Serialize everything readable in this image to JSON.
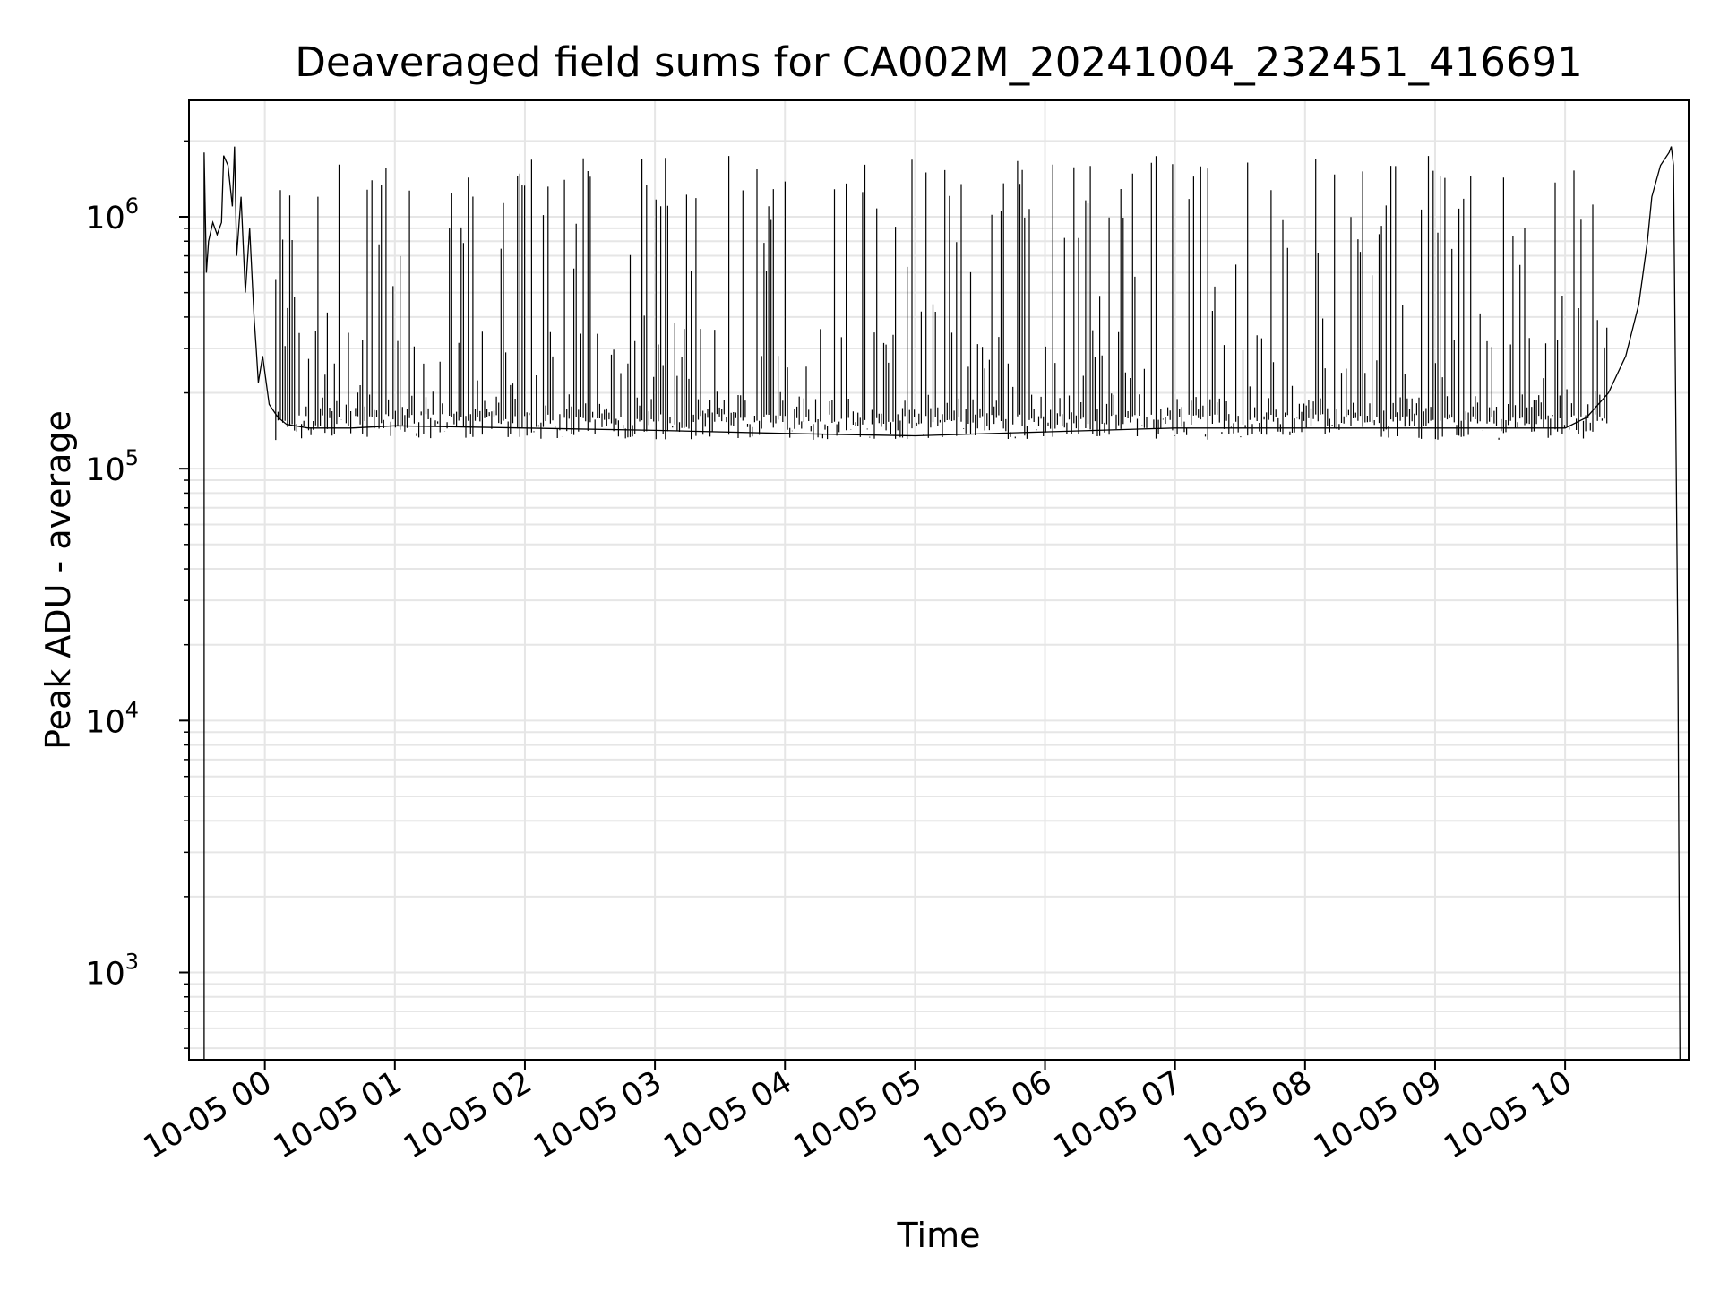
{
  "chart_data": {
    "type": "line",
    "title": "Deaveraged field sums for CA002M_20241004_232451_416691",
    "xlabel": "Time",
    "ylabel": "Peak ADU - average",
    "y_scale": "log",
    "ylim": [
      450,
      2900000
    ],
    "xlim": [
      "2024-10-04 23:25",
      "2024-10-05 10:57"
    ],
    "grid": true,
    "grid_minor_y": true,
    "line_color": "#000000",
    "grid_color": "#e6e6e6",
    "x_ticks": [
      {
        "value": "2024-10-05 00:00",
        "label": "10-05 00"
      },
      {
        "value": "2024-10-05 01:00",
        "label": "10-05 01"
      },
      {
        "value": "2024-10-05 02:00",
        "label": "10-05 02"
      },
      {
        "value": "2024-10-05 03:00",
        "label": "10-05 03"
      },
      {
        "value": "2024-10-05 04:00",
        "label": "10-05 04"
      },
      {
        "value": "2024-10-05 05:00",
        "label": "10-05 05"
      },
      {
        "value": "2024-10-05 06:00",
        "label": "10-05 06"
      },
      {
        "value": "2024-10-05 07:00",
        "label": "10-05 07"
      },
      {
        "value": "2024-10-05 08:00",
        "label": "10-05 08"
      },
      {
        "value": "2024-10-05 09:00",
        "label": "10-05 09"
      },
      {
        "value": "2024-10-05 10:00",
        "label": "10-05 10"
      }
    ],
    "y_ticks": [
      {
        "value": 1000,
        "base": "10",
        "exp": "3"
      },
      {
        "value": 10000,
        "base": "10",
        "exp": "4"
      },
      {
        "value": 100000,
        "base": "10",
        "exp": "5"
      },
      {
        "value": 1000000,
        "base": "10",
        "exp": "6"
      }
    ],
    "series": [
      {
        "points": [
          [
            "2024-10-04 23:32",
            450
          ],
          [
            "2024-10-04 23:32",
            900000
          ],
          [
            "2024-10-04 23:32",
            1800000
          ],
          [
            "2024-10-04 23:33",
            600000
          ],
          [
            "2024-10-04 23:34",
            800000
          ],
          [
            "2024-10-04 23:36",
            950000
          ],
          [
            "2024-10-04 23:38",
            850000
          ],
          [
            "2024-10-04 23:40",
            950000
          ],
          [
            "2024-10-04 23:41",
            1750000
          ],
          [
            "2024-10-04 23:43",
            1600000
          ],
          [
            "2024-10-04 23:45",
            1100000
          ],
          [
            "2024-10-04 23:46",
            1900000
          ],
          [
            "2024-10-04 23:47",
            700000
          ],
          [
            "2024-10-04 23:49",
            1200000
          ],
          [
            "2024-10-04 23:51",
            500000
          ],
          [
            "2024-10-04 23:53",
            900000
          ],
          [
            "2024-10-04 23:55",
            400000
          ],
          [
            "2024-10-04 23:56",
            300000
          ],
          [
            "2024-10-04 23:57",
            220000
          ],
          [
            "2024-10-04 23:59",
            280000
          ],
          [
            "2024-10-05 00:02",
            180000
          ],
          [
            "2024-10-05 00:06",
            160000
          ],
          [
            "2024-10-05 00:10",
            150000
          ],
          [
            "2024-10-05 00:20",
            145000
          ],
          [
            "2024-10-05 00:40",
            145000
          ],
          [
            "2024-10-05 01:00",
            148000
          ],
          [
            "2024-10-05 02:00",
            145000
          ],
          [
            "2024-10-05 03:00",
            142000
          ],
          [
            "2024-10-05 04:00",
            138000
          ],
          [
            "2024-10-05 05:00",
            135000
          ],
          [
            "2024-10-05 06:00",
            140000
          ],
          [
            "2024-10-05 07:00",
            145000
          ],
          [
            "2024-10-05 08:00",
            145000
          ],
          [
            "2024-10-05 09:00",
            145000
          ],
          [
            "2024-10-05 10:00",
            145000
          ],
          [
            "2024-10-05 10:10",
            160000
          ],
          [
            "2024-10-05 10:20",
            200000
          ],
          [
            "2024-10-05 10:28",
            280000
          ],
          [
            "2024-10-05 10:34",
            450000
          ],
          [
            "2024-10-05 10:38",
            800000
          ],
          [
            "2024-10-05 10:40",
            1200000
          ],
          [
            "2024-10-05 10:44",
            1600000
          ],
          [
            "2024-10-05 10:48",
            1800000
          ],
          [
            "2024-10-05 10:49",
            1900000
          ],
          [
            "2024-10-05 10:50",
            1600000
          ],
          [
            "2024-10-05 10:52",
            20000
          ],
          [
            "2024-10-05 10:53",
            450
          ]
        ]
      }
    ]
  }
}
